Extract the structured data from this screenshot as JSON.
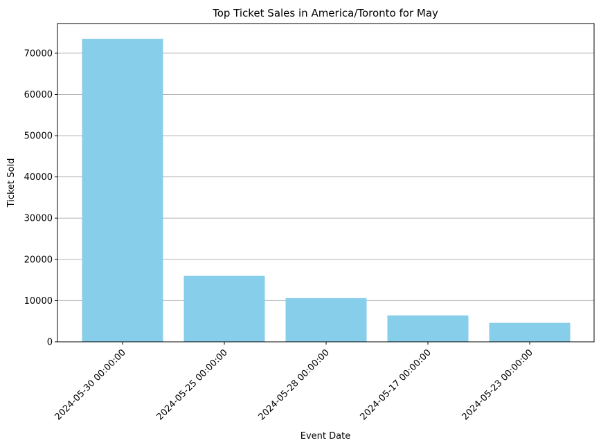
{
  "chart_data": {
    "type": "bar",
    "title": "Top Ticket Sales in America/Toronto for May",
    "xlabel": "Event Date",
    "ylabel": "Ticket Sold",
    "categories": [
      "2024-05-30 00:00:00",
      "2024-05-25 00:00:00",
      "2024-05-28 00:00:00",
      "2024-05-17 00:00:00",
      "2024-05-23 00:00:00"
    ],
    "values": [
      73500,
      16000,
      10600,
      6400,
      4600
    ],
    "ylim": [
      0,
      77200
    ],
    "yticks": [
      0,
      10000,
      20000,
      30000,
      40000,
      50000,
      60000,
      70000
    ],
    "ytick_labels": [
      "0",
      "10000",
      "20000",
      "30000",
      "40000",
      "50000",
      "60000",
      "70000"
    ],
    "grid": "y-axis horizontal lines",
    "bar_color": "#87ceeb",
    "grid_color": "#b0b0b0"
  }
}
